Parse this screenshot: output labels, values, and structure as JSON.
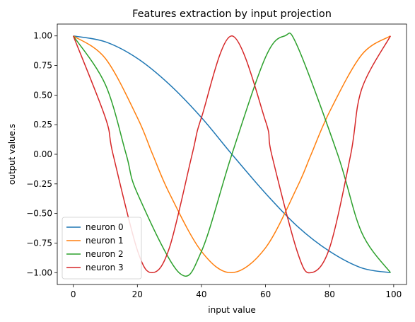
{
  "chart_data": {
    "type": "line",
    "title": "Features extraction by input projection",
    "xlabel": "input value",
    "ylabel": "output value.s",
    "xlim": [
      -5,
      104
    ],
    "ylim": [
      -1.1,
      1.1
    ],
    "xticks": [
      0,
      20,
      40,
      60,
      80,
      100
    ],
    "xtick_labels": [
      "0",
      "20",
      "40",
      "60",
      "80",
      "100"
    ],
    "yticks": [
      1.0,
      0.75,
      0.5,
      0.25,
      0.0,
      -0.25,
      -0.5,
      -0.75,
      -1.0
    ],
    "ytick_labels": [
      "1.00",
      "0.75",
      "0.50",
      "0.25",
      "0.00",
      "−0.25",
      "−0.50",
      "−0.75",
      "−1.00"
    ],
    "grid": false,
    "legend_position": "lower-left",
    "series": [
      {
        "name": "neuron 0",
        "color": "#1f77b4",
        "x": [
          0,
          10,
          20,
          30,
          40,
          49.5,
          60,
          70,
          80,
          90,
          99
        ],
        "y": [
          1.0,
          0.95,
          0.81,
          0.59,
          0.31,
          0.0,
          -0.33,
          -0.61,
          -0.82,
          -0.96,
          -1.0
        ]
      },
      {
        "name": "neuron 1",
        "color": "#ff7f0e",
        "x": [
          0,
          10,
          20,
          24.75,
          30,
          40,
          49.5,
          60,
          70,
          74.25,
          80,
          90,
          99
        ],
        "y": [
          1.0,
          0.81,
          0.31,
          0.0,
          -0.33,
          -0.82,
          -1.0,
          -0.79,
          -0.27,
          0.0,
          0.36,
          0.84,
          1.0
        ]
      },
      {
        "name": "neuron 2",
        "color": "#ff7f0e",
        "x": [
          0,
          10,
          16.5,
          20,
          33,
          40,
          49.5,
          60,
          66,
          70,
          82.5,
          90,
          99
        ],
        "y": [
          1.0,
          0.59,
          0.0,
          -0.33,
          -1.0,
          -0.82,
          0.0,
          0.82,
          1.0,
          0.91,
          0.0,
          -0.66,
          -1.0
        ]
      },
      {
        "name": "neuron 3",
        "color": "#d62728",
        "x": [
          0,
          10,
          12.4,
          20,
          24.75,
          30,
          37.1,
          40,
          49.5,
          60,
          61.9,
          70,
          74.25,
          80,
          86.6,
          90,
          99
        ],
        "y": [
          1.0,
          0.31,
          0.0,
          -0.81,
          -1.0,
          -0.79,
          0.0,
          0.31,
          1.0,
          0.28,
          0.0,
          -0.83,
          -1.0,
          -0.79,
          0.0,
          0.55,
          1.0
        ]
      }
    ]
  }
}
